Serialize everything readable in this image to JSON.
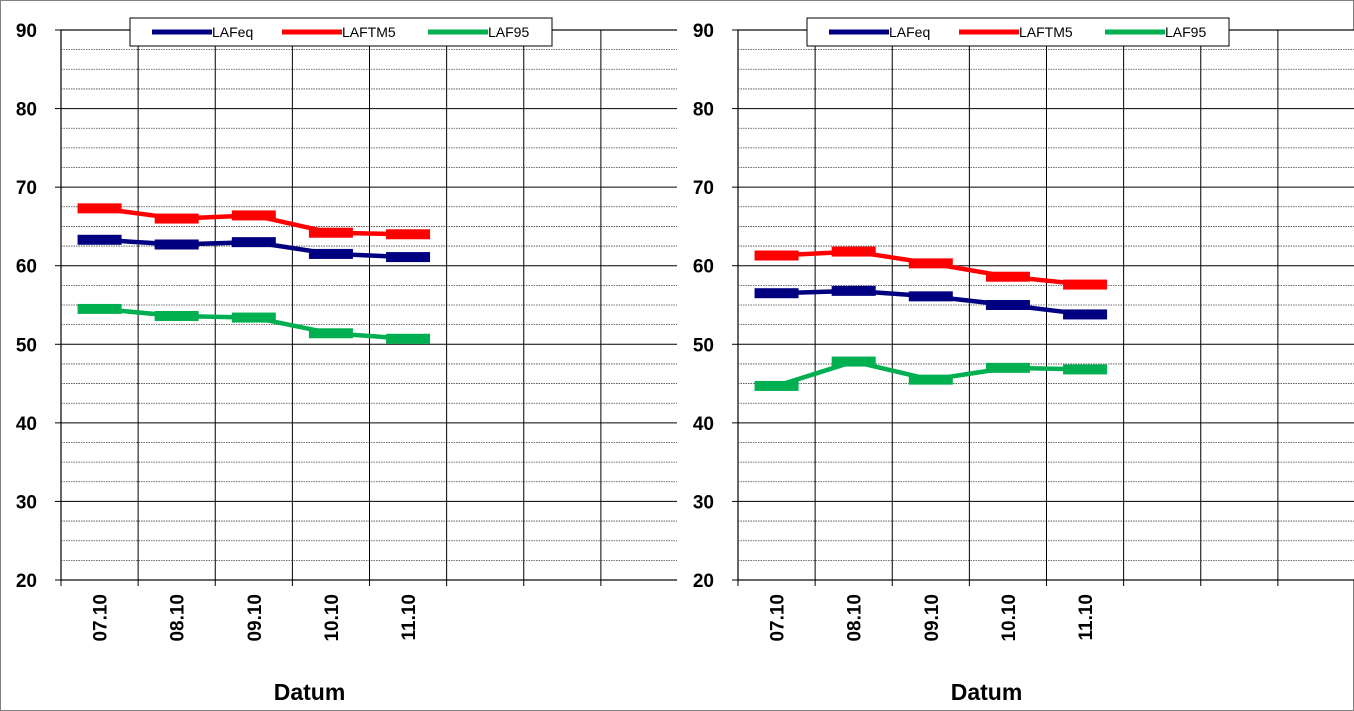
{
  "chart_data": [
    {
      "type": "line",
      "categories": [
        "07.10",
        "08.10",
        "09.10",
        "10.10",
        "11.10"
      ],
      "series": [
        {
          "name": "LAFeq",
          "color": "#000080",
          "values": [
            63.3,
            62.7,
            63.0,
            61.5,
            61.1
          ]
        },
        {
          "name": "LAFTM5",
          "color": "#ff0000",
          "values": [
            67.3,
            66.0,
            66.4,
            64.2,
            64.0
          ]
        },
        {
          "name": "LAF95",
          "color": "#00b050",
          "values": [
            54.5,
            53.6,
            53.4,
            51.4,
            50.7
          ]
        }
      ],
      "xlabel": "Datum",
      "ylabel": "",
      "ylim": [
        20,
        90
      ],
      "yticks": [
        "90",
        "80",
        "70",
        "60",
        "50",
        "40",
        "30",
        "20"
      ],
      "grid": true,
      "legend_position": "top"
    },
    {
      "type": "line",
      "categories": [
        "07.10",
        "08.10",
        "09.10",
        "10.10",
        "11.10"
      ],
      "series": [
        {
          "name": "LAFeq",
          "color": "#000080",
          "values": [
            56.5,
            56.8,
            56.1,
            55.0,
            53.8
          ]
        },
        {
          "name": "LAFTM5",
          "color": "#ff0000",
          "values": [
            61.3,
            61.8,
            60.3,
            58.6,
            57.6
          ]
        },
        {
          "name": "LAF95",
          "color": "#00b050",
          "values": [
            44.7,
            47.8,
            45.5,
            47.0,
            46.8
          ]
        }
      ],
      "xlabel": "Datum",
      "ylabel": "",
      "ylim": [
        20,
        90
      ],
      "yticks": [
        "90",
        "80",
        "70",
        "60",
        "50",
        "40",
        "30",
        "20"
      ],
      "grid": true,
      "legend_position": "top"
    }
  ]
}
